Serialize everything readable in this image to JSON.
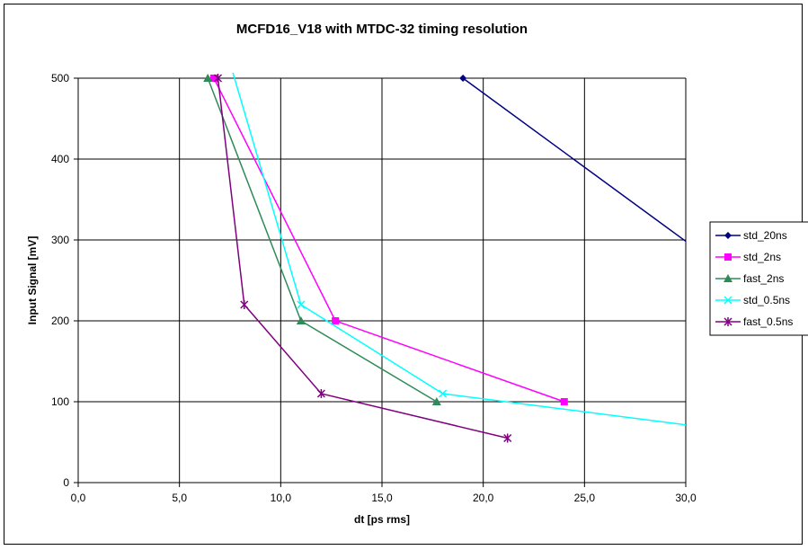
{
  "chart_data": {
    "type": "line",
    "title": "MCFD16_V18 with MTDC-32 timing resolution",
    "xlabel": "dt [ps rms]",
    "ylabel": "Input Signal [mV]",
    "xlim": [
      0,
      30
    ],
    "ylim": [
      0,
      500
    ],
    "x_ticks": [
      "0,0",
      "5,0",
      "10,0",
      "15,0",
      "20,0",
      "25,0",
      "30,0"
    ],
    "y_ticks": [
      "0",
      "100",
      "200",
      "300",
      "400",
      "500"
    ],
    "grid": true,
    "legend_position": "right",
    "series": [
      {
        "name": "std_20ns",
        "color": "#000080",
        "marker": "diamond",
        "points": [
          [
            19.0,
            500
          ],
          [
            31.0,
            280
          ]
        ]
      },
      {
        "name": "std_2ns",
        "color": "#ff00ff",
        "marker": "square",
        "points": [
          [
            6.7,
            500
          ],
          [
            12.7,
            200
          ],
          [
            24.0,
            100
          ]
        ]
      },
      {
        "name": "fast_2ns",
        "color": "#2e8b57",
        "marker": "triangle",
        "points": [
          [
            6.4,
            500
          ],
          [
            11.0,
            200
          ],
          [
            17.7,
            100
          ]
        ]
      },
      {
        "name": "std_0.5ns",
        "color": "#00ffff",
        "marker": "x",
        "points": [
          [
            7.6,
            510
          ],
          [
            11.0,
            220
          ],
          [
            18.0,
            110
          ],
          [
            32.0,
            65
          ]
        ]
      },
      {
        "name": "fast_0.5ns",
        "color": "#800080",
        "marker": "star",
        "points": [
          [
            6.9,
            500
          ],
          [
            8.2,
            220
          ],
          [
            12.0,
            110
          ],
          [
            21.2,
            55
          ]
        ]
      }
    ]
  }
}
